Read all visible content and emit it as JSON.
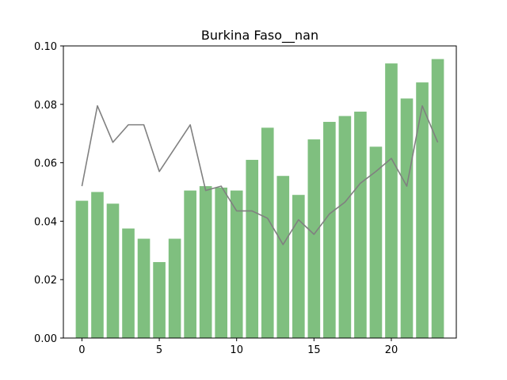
{
  "chart_data": {
    "type": "bar",
    "title": "Burkina Faso__nan",
    "xlabel": "",
    "ylabel": "",
    "x": [
      0,
      1,
      2,
      3,
      4,
      5,
      6,
      7,
      8,
      9,
      10,
      11,
      12,
      13,
      14,
      15,
      16,
      17,
      18,
      19,
      20,
      21,
      22,
      23
    ],
    "series": [
      {
        "type": "bar",
        "color": "#7fbf7f",
        "values": [
          0.047,
          0.05,
          0.046,
          0.0375,
          0.034,
          0.026,
          0.034,
          0.0505,
          0.052,
          0.0515,
          0.0505,
          0.061,
          0.072,
          0.0555,
          0.049,
          0.068,
          0.074,
          0.076,
          0.0775,
          0.0655,
          0.094,
          0.082,
          0.0875,
          0.0955
        ]
      },
      {
        "type": "line",
        "color": "#808080",
        "values": [
          0.052,
          0.0795,
          0.067,
          0.073,
          0.073,
          0.057,
          0.065,
          0.073,
          0.0505,
          0.052,
          0.0435,
          0.0435,
          0.041,
          0.032,
          0.0405,
          0.0355,
          0.0425,
          0.0465,
          0.053,
          0.057,
          0.0615,
          0.052,
          0.0795,
          0.067
        ]
      }
    ],
    "xlim": [
      -1.2,
      24.2
    ],
    "ylim": [
      0,
      0.1
    ],
    "xticks": [
      0,
      5,
      10,
      15,
      20
    ],
    "yticks": [
      0.0,
      0.02,
      0.04,
      0.06,
      0.08,
      0.1
    ],
    "ytick_labels": [
      "0.00",
      "0.02",
      "0.04",
      "0.06",
      "0.08",
      "0.10"
    ],
    "xtick_labels": [
      "0",
      "5",
      "10",
      "15",
      "20"
    ],
    "grid": false,
    "legend": "none"
  }
}
